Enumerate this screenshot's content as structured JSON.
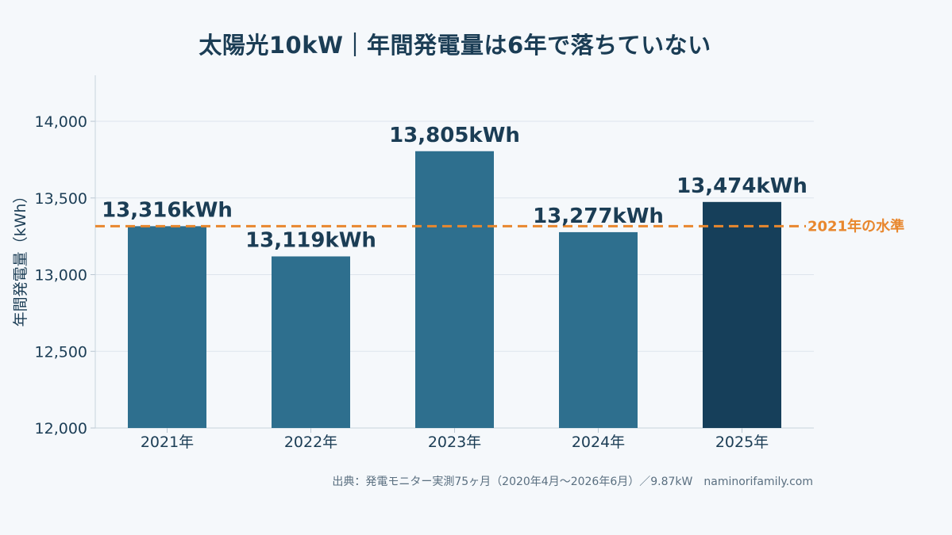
{
  "title": "太陽光10kW｜年間発電量は6年で落ちていない",
  "source": "出典：発電モニター実測75ヶ月（2020年4月〜2026年6月）／9.87kW　naminorifamily.com",
  "colors": {
    "bar": "#2e6f8e",
    "bar_highlight": "#163f5a",
    "reference": "#e8872e",
    "text": "#1b3d55",
    "grid": "#dde5ec"
  },
  "chart_data": {
    "type": "bar",
    "categories": [
      "2021年",
      "2022年",
      "2023年",
      "2024年",
      "2025年"
    ],
    "values": [
      13316,
      13119,
      13805,
      13277,
      13474
    ],
    "data_labels": [
      "13,316kWh",
      "13,119kWh",
      "13,805kWh",
      "13,277kWh",
      "13,474kWh"
    ],
    "highlight_index": 4,
    "ylabel": "年間発電量（kWh）",
    "xlabel": "",
    "ylim": [
      12000,
      14300
    ],
    "yticks": [
      12000,
      12500,
      13000,
      13500,
      14000
    ],
    "ytick_labels": [
      "12,000",
      "12,500",
      "13,000",
      "13,500",
      "14,000"
    ],
    "reference_line": {
      "value": 13316,
      "label": "2021年の水準",
      "style": "dashed"
    },
    "grid": true,
    "legend": "none"
  }
}
